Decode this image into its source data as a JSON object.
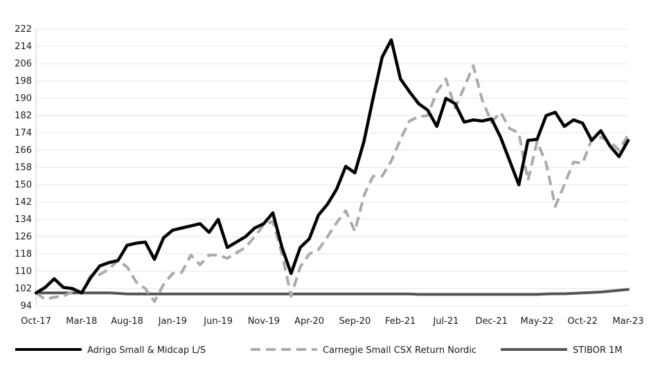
{
  "chart_data": {
    "type": "line",
    "title": "",
    "xlabel": "",
    "ylabel": "",
    "ylim": [
      94,
      222
    ],
    "yticks": [
      94,
      102,
      110,
      118,
      126,
      134,
      142,
      150,
      158,
      166,
      174,
      182,
      190,
      198,
      206,
      214,
      222
    ],
    "x_tick_labels": [
      "Oct-17",
      "Mar-18",
      "Aug-18",
      "Jan-19",
      "Jun-19",
      "Nov-19",
      "Apr-20",
      "Sep-20",
      "Feb-21",
      "Jul-21",
      "Dec-21",
      "May-22",
      "Oct-22",
      "Mar-23"
    ],
    "grid": true,
    "legend_position": "bottom",
    "x": [
      "Oct-17",
      "Nov-17",
      "Dec-17",
      "Jan-18",
      "Feb-18",
      "Mar-18",
      "Apr-18",
      "May-18",
      "Jun-18",
      "Jul-18",
      "Aug-18",
      "Sep-18",
      "Oct-18",
      "Nov-18",
      "Dec-18",
      "Jan-19",
      "Feb-19",
      "Mar-19",
      "Apr-19",
      "May-19",
      "Jun-19",
      "Jul-19",
      "Aug-19",
      "Sep-19",
      "Oct-19",
      "Nov-19",
      "Dec-19",
      "Jan-20",
      "Feb-20",
      "Mar-20",
      "Apr-20",
      "May-20",
      "Jun-20",
      "Jul-20",
      "Aug-20",
      "Sep-20",
      "Oct-20",
      "Nov-20",
      "Dec-20",
      "Jan-21",
      "Feb-21",
      "Mar-21",
      "Apr-21",
      "May-21",
      "Jun-21",
      "Jul-21",
      "Aug-21",
      "Sep-21",
      "Oct-21",
      "Nov-21",
      "Dec-21",
      "Jan-22",
      "Feb-22",
      "Mar-22",
      "Apr-22",
      "May-22",
      "Jun-22",
      "Jul-22",
      "Aug-22",
      "Sep-22",
      "Oct-22",
      "Nov-22",
      "Dec-22",
      "Jan-23",
      "Feb-23",
      "Mar-23"
    ],
    "series": [
      {
        "name": "Adrigo Small & Midcap L/S",
        "color": "#000000",
        "style": "solid",
        "values": [
          100,
          102.5,
          106.5,
          102.5,
          102,
          100,
          107,
          112.5,
          114,
          115,
          122,
          123,
          123.5,
          115.5,
          125.5,
          129,
          130,
          131,
          132,
          128,
          134,
          121,
          123.5,
          126,
          130,
          132,
          137,
          121,
          109,
          121,
          125,
          136,
          141,
          148,
          158.5,
          155.5,
          170,
          190,
          209,
          217,
          199,
          193,
          187.5,
          184.5,
          177,
          190,
          187.5,
          179,
          180,
          179.5,
          180.5,
          172,
          161,
          150,
          170.5,
          171,
          182,
          183.5,
          177,
          180,
          178.5,
          170.5,
          175,
          168,
          163,
          170.5
        ]
      },
      {
        "name": "Carnegie Small CSX Return Nordic",
        "color": "#aaaaaa",
        "style": "dashed",
        "values": [
          100,
          97,
          98,
          98.5,
          100.5,
          100,
          108,
          108.5,
          111,
          115,
          112,
          105,
          102,
          96,
          104,
          109,
          109.5,
          117.5,
          113,
          117.5,
          117.5,
          116,
          118.5,
          121,
          126,
          131.5,
          133,
          118,
          98.5,
          112,
          118,
          120,
          126,
          132.5,
          138,
          128.5,
          145,
          154,
          154,
          161,
          171,
          179.5,
          181.5,
          182,
          193,
          199,
          185.5,
          195,
          205,
          189,
          179,
          183.5,
          176,
          174,
          152,
          170,
          160,
          140,
          150,
          160.5,
          160,
          171,
          172,
          170,
          166,
          173
        ]
      },
      {
        "name": "STIBOR 1M",
        "color": "#555555",
        "style": "solid",
        "values": [
          100,
          100,
          100,
          100,
          100,
          100,
          100,
          100,
          100,
          99.8,
          99.5,
          99.5,
          99.5,
          99.5,
          99.5,
          99.5,
          99.5,
          99.5,
          99.5,
          99.5,
          99.5,
          99.5,
          99.5,
          99.5,
          99.5,
          99.5,
          99.5,
          99.5,
          99.5,
          99.5,
          99.5,
          99.5,
          99.5,
          99.5,
          99.5,
          99.5,
          99.5,
          99.5,
          99.5,
          99.5,
          99.5,
          99.5,
          99.3,
          99.3,
          99.3,
          99.3,
          99.3,
          99.3,
          99.3,
          99.3,
          99.3,
          99.3,
          99.3,
          99.3,
          99.3,
          99.3,
          99.5,
          99.6,
          99.6,
          99.8,
          100,
          100.2,
          100.4,
          100.8,
          101.2,
          101.6
        ]
      }
    ]
  }
}
